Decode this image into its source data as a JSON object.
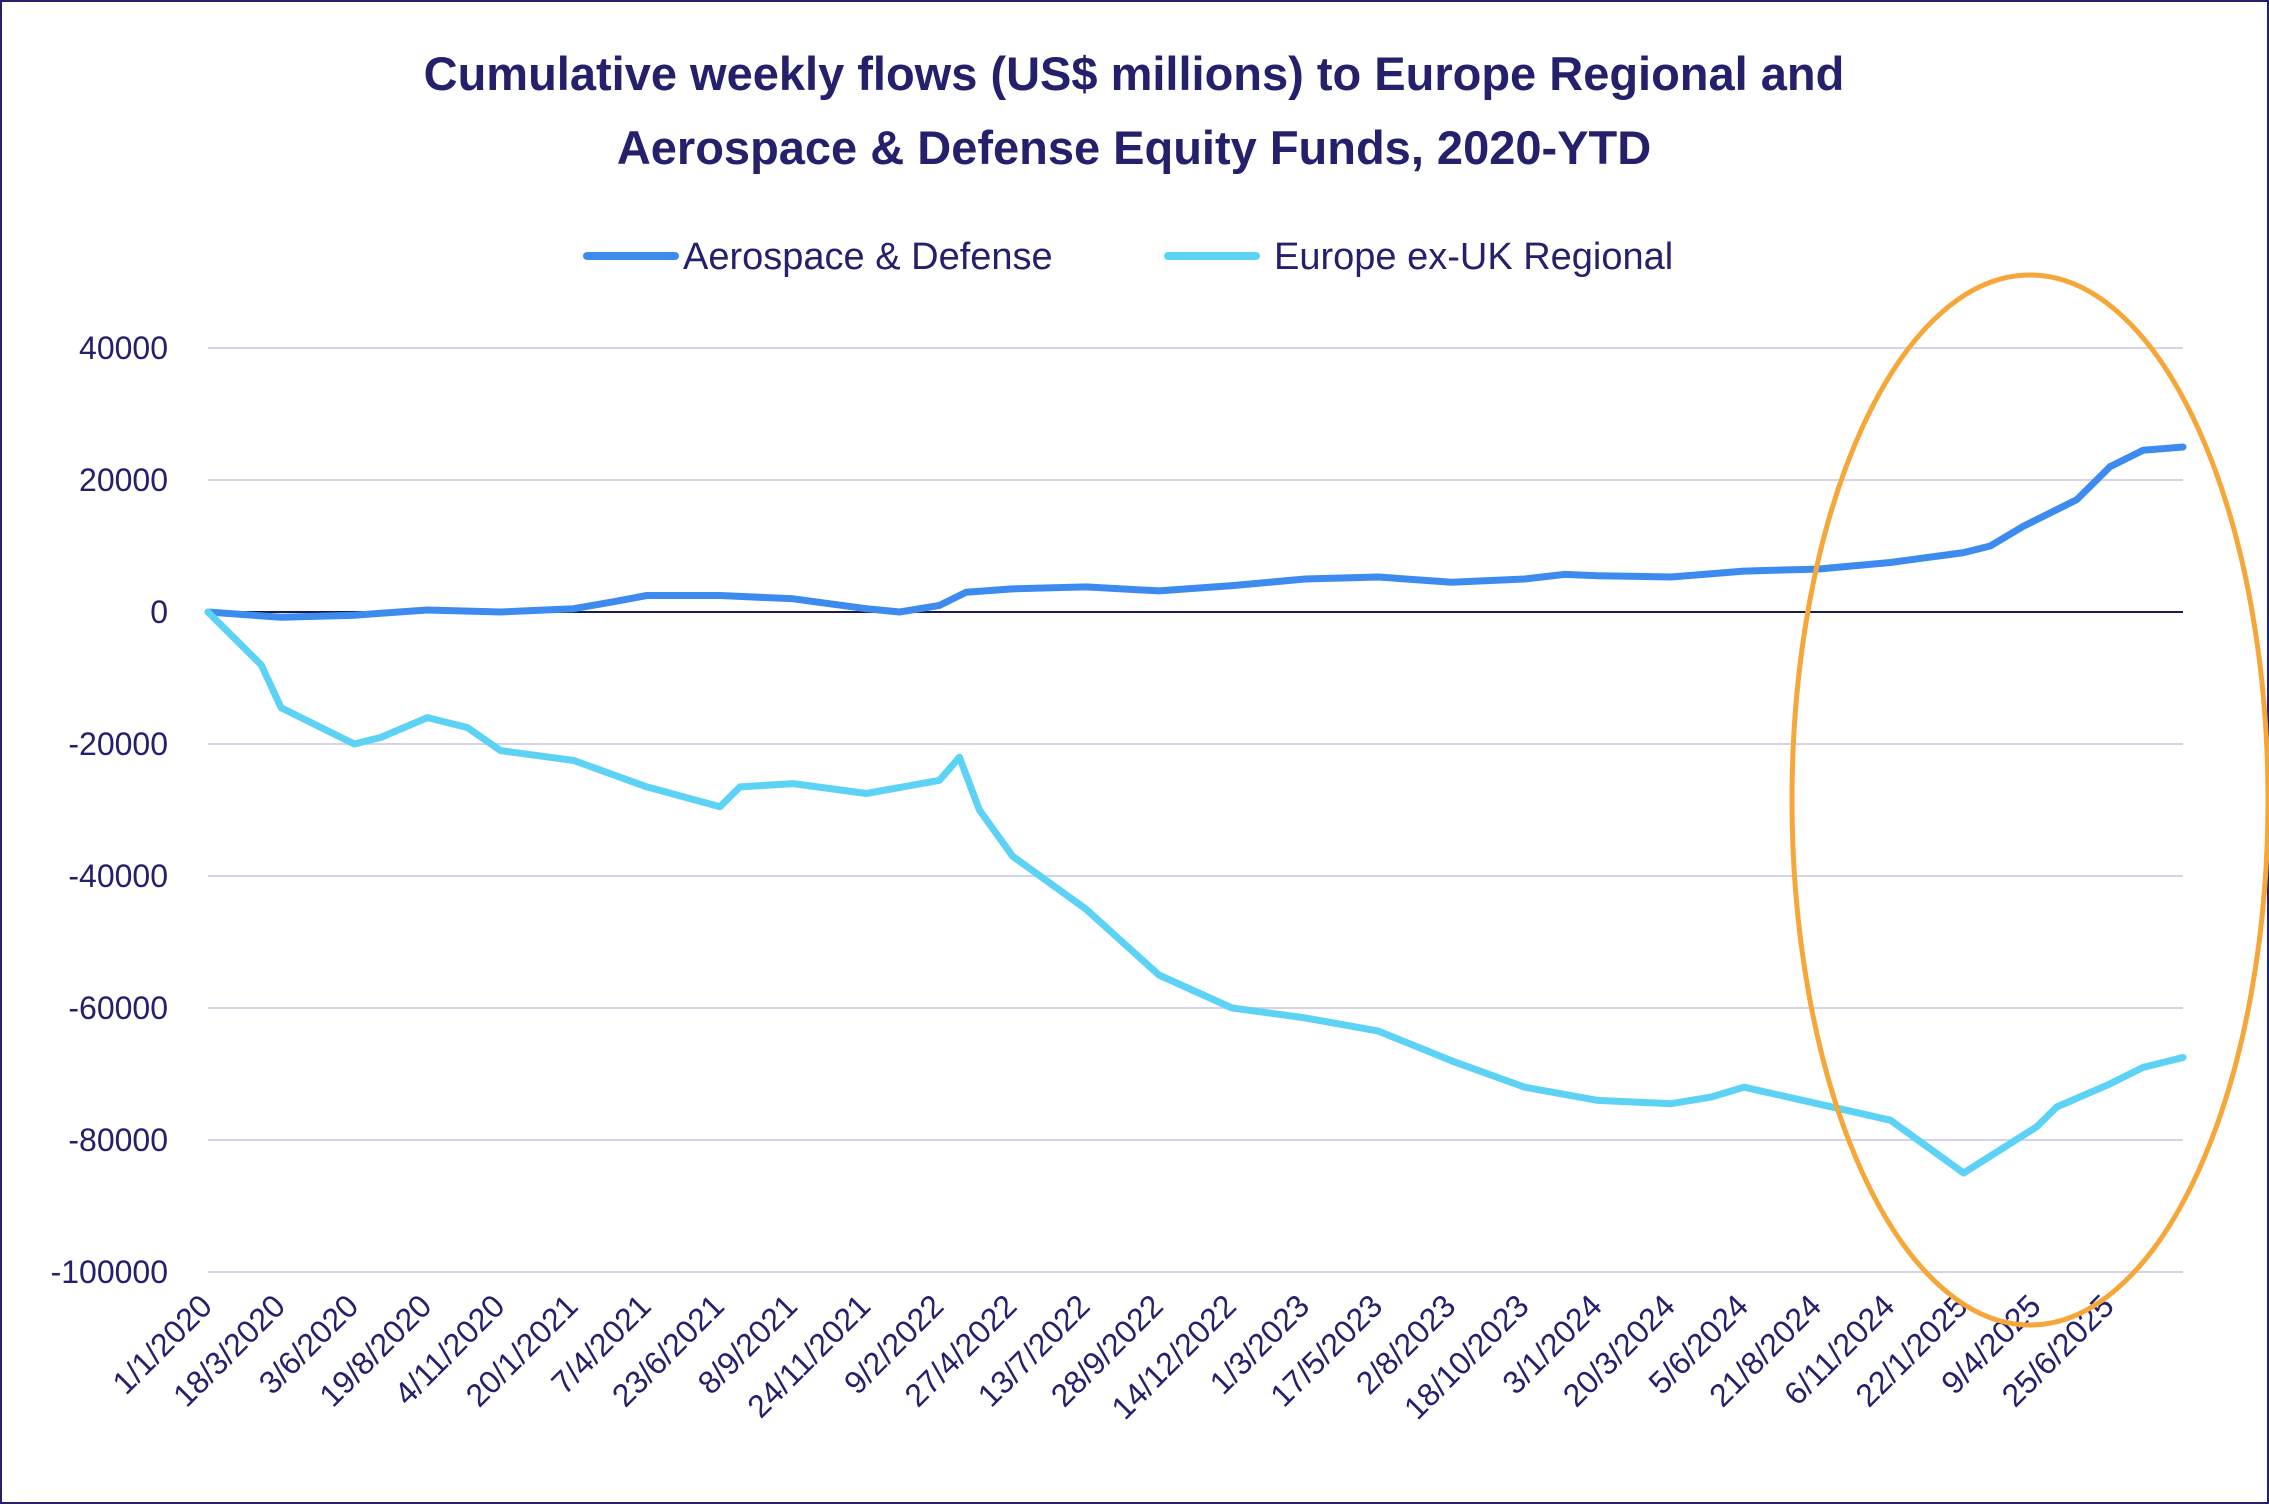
{
  "chart_data": {
    "type": "line",
    "title": "Cumulative weekly flows (US$ millions) to Europe Regional and Aerospace & Defense Equity Funds, 2020-YTD",
    "title_lines": [
      "Cumulative weekly flows (US$ millions) to Europe Regional and",
      "Aerospace & Defense Equity Funds, 2020-YTD"
    ],
    "xlabel": "",
    "ylabel": "",
    "ylim": [
      -100000,
      40000
    ],
    "yticks": [
      40000,
      20000,
      0,
      -20000,
      -40000,
      -60000,
      -80000,
      -100000
    ],
    "ytick_labels": [
      "40000",
      "20000",
      "0",
      "-20000",
      "-40000",
      "-60000",
      "-80000",
      "-100000"
    ],
    "xtick_labels": [
      "1/1/2020",
      "18/3/2020",
      "3/6/2020",
      "19/8/2020",
      "4/11/2020",
      "20/1/2021",
      "7/4/2021",
      "23/6/2021",
      "8/9/2021",
      "24/11/2021",
      "9/2/2022",
      "27/4/2022",
      "13/7/2022",
      "28/9/2022",
      "14/12/2022",
      "1/3/2023",
      "17/5/2023",
      "2/8/2023",
      "18/10/2023",
      "3/1/2024",
      "20/3/2024",
      "5/6/2024",
      "21/8/2024",
      "6/11/2024",
      "22/1/2025",
      "9/4/2025",
      "25/6/2025"
    ],
    "x_range": [
      "1/1/2020",
      "10/9/2025"
    ],
    "grid": true,
    "legend_position": "top",
    "annotation": "orange ellipse highlighting 2024-2025",
    "colors": {
      "aerospace": "#3d8bef",
      "europe": "#5cd3f5",
      "annotation": "#f5a73a",
      "text": "#25206b",
      "grid": "#d4d3ea"
    },
    "series": [
      {
        "name": "Aerospace & Defense",
        "color": "#3d8bef",
        "points": [
          [
            "1/1/2020",
            0
          ],
          [
            "18/3/2020",
            -800
          ],
          [
            "3/6/2020",
            -500
          ],
          [
            "1/7/2020",
            -200
          ],
          [
            "19/8/2020",
            300
          ],
          [
            "4/11/2020",
            0
          ],
          [
            "20/1/2021",
            500
          ],
          [
            "1/3/2021",
            1500
          ],
          [
            "7/4/2021",
            2500
          ],
          [
            "23/6/2021",
            2500
          ],
          [
            "8/9/2021",
            2000
          ],
          [
            "24/11/2021",
            500
          ],
          [
            "29/12/2021",
            0
          ],
          [
            "9/2/2022",
            1000
          ],
          [
            "9/3/2022",
            3000
          ],
          [
            "27/4/2022",
            3500
          ],
          [
            "13/7/2022",
            3800
          ],
          [
            "28/9/2022",
            3200
          ],
          [
            "14/12/2022",
            4000
          ],
          [
            "1/3/2023",
            5000
          ],
          [
            "17/5/2023",
            5300
          ],
          [
            "2/8/2023",
            4500
          ],
          [
            "18/10/2023",
            5000
          ],
          [
            "29/11/2023",
            5700
          ],
          [
            "3/1/2024",
            5500
          ],
          [
            "20/3/2024",
            5300
          ],
          [
            "5/6/2024",
            6200
          ],
          [
            "21/8/2024",
            6500
          ],
          [
            "6/11/2024",
            7500
          ],
          [
            "22/1/2025",
            9000
          ],
          [
            "19/2/2025",
            10000
          ],
          [
            "26/3/2025",
            13000
          ],
          [
            "9/4/2025",
            14000
          ],
          [
            "21/5/2025",
            17000
          ],
          [
            "25/6/2025",
            22000
          ],
          [
            "30/7/2025",
            24500
          ],
          [
            "10/9/2025",
            25000
          ]
        ]
      },
      {
        "name": "Europe ex-UK Regional",
        "color": "#5cd3f5",
        "points": [
          [
            "1/1/2020",
            0
          ],
          [
            "5/2/2020",
            -5000
          ],
          [
            "26/2/2020",
            -8000
          ],
          [
            "18/3/2020",
            -14500
          ],
          [
            "22/4/2020",
            -17000
          ],
          [
            "3/6/2020",
            -20000
          ],
          [
            "1/7/2020",
            -19000
          ],
          [
            "19/8/2020",
            -16000
          ],
          [
            "30/9/2020",
            -17500
          ],
          [
            "4/11/2020",
            -21000
          ],
          [
            "20/1/2021",
            -22500
          ],
          [
            "7/4/2021",
            -26500
          ],
          [
            "23/6/2021",
            -29500
          ],
          [
            "14/7/2021",
            -26500
          ],
          [
            "8/9/2021",
            -26000
          ],
          [
            "24/11/2021",
            -27500
          ],
          [
            "9/2/2022",
            -25500
          ],
          [
            "2/3/2022",
            -22000
          ],
          [
            "23/3/2022",
            -30000
          ],
          [
            "27/4/2022",
            -37000
          ],
          [
            "13/7/2022",
            -45000
          ],
          [
            "28/9/2022",
            -55000
          ],
          [
            "14/12/2022",
            -60000
          ],
          [
            "1/3/2023",
            -61500
          ],
          [
            "17/5/2023",
            -63500
          ],
          [
            "2/8/2023",
            -68000
          ],
          [
            "18/10/2023",
            -72000
          ],
          [
            "3/1/2024",
            -74000
          ],
          [
            "20/3/2024",
            -74500
          ],
          [
            "1/5/2024",
            -73500
          ],
          [
            "5/6/2024",
            -72000
          ],
          [
            "21/8/2024",
            -74500
          ],
          [
            "6/11/2024",
            -77000
          ],
          [
            "22/1/2025",
            -85000
          ],
          [
            "9/4/2025",
            -78000
          ],
          [
            "30/4/2025",
            -75000
          ],
          [
            "25/6/2025",
            -71500
          ],
          [
            "30/7/2025",
            -69000
          ],
          [
            "10/9/2025",
            -67500
          ]
        ]
      }
    ]
  }
}
